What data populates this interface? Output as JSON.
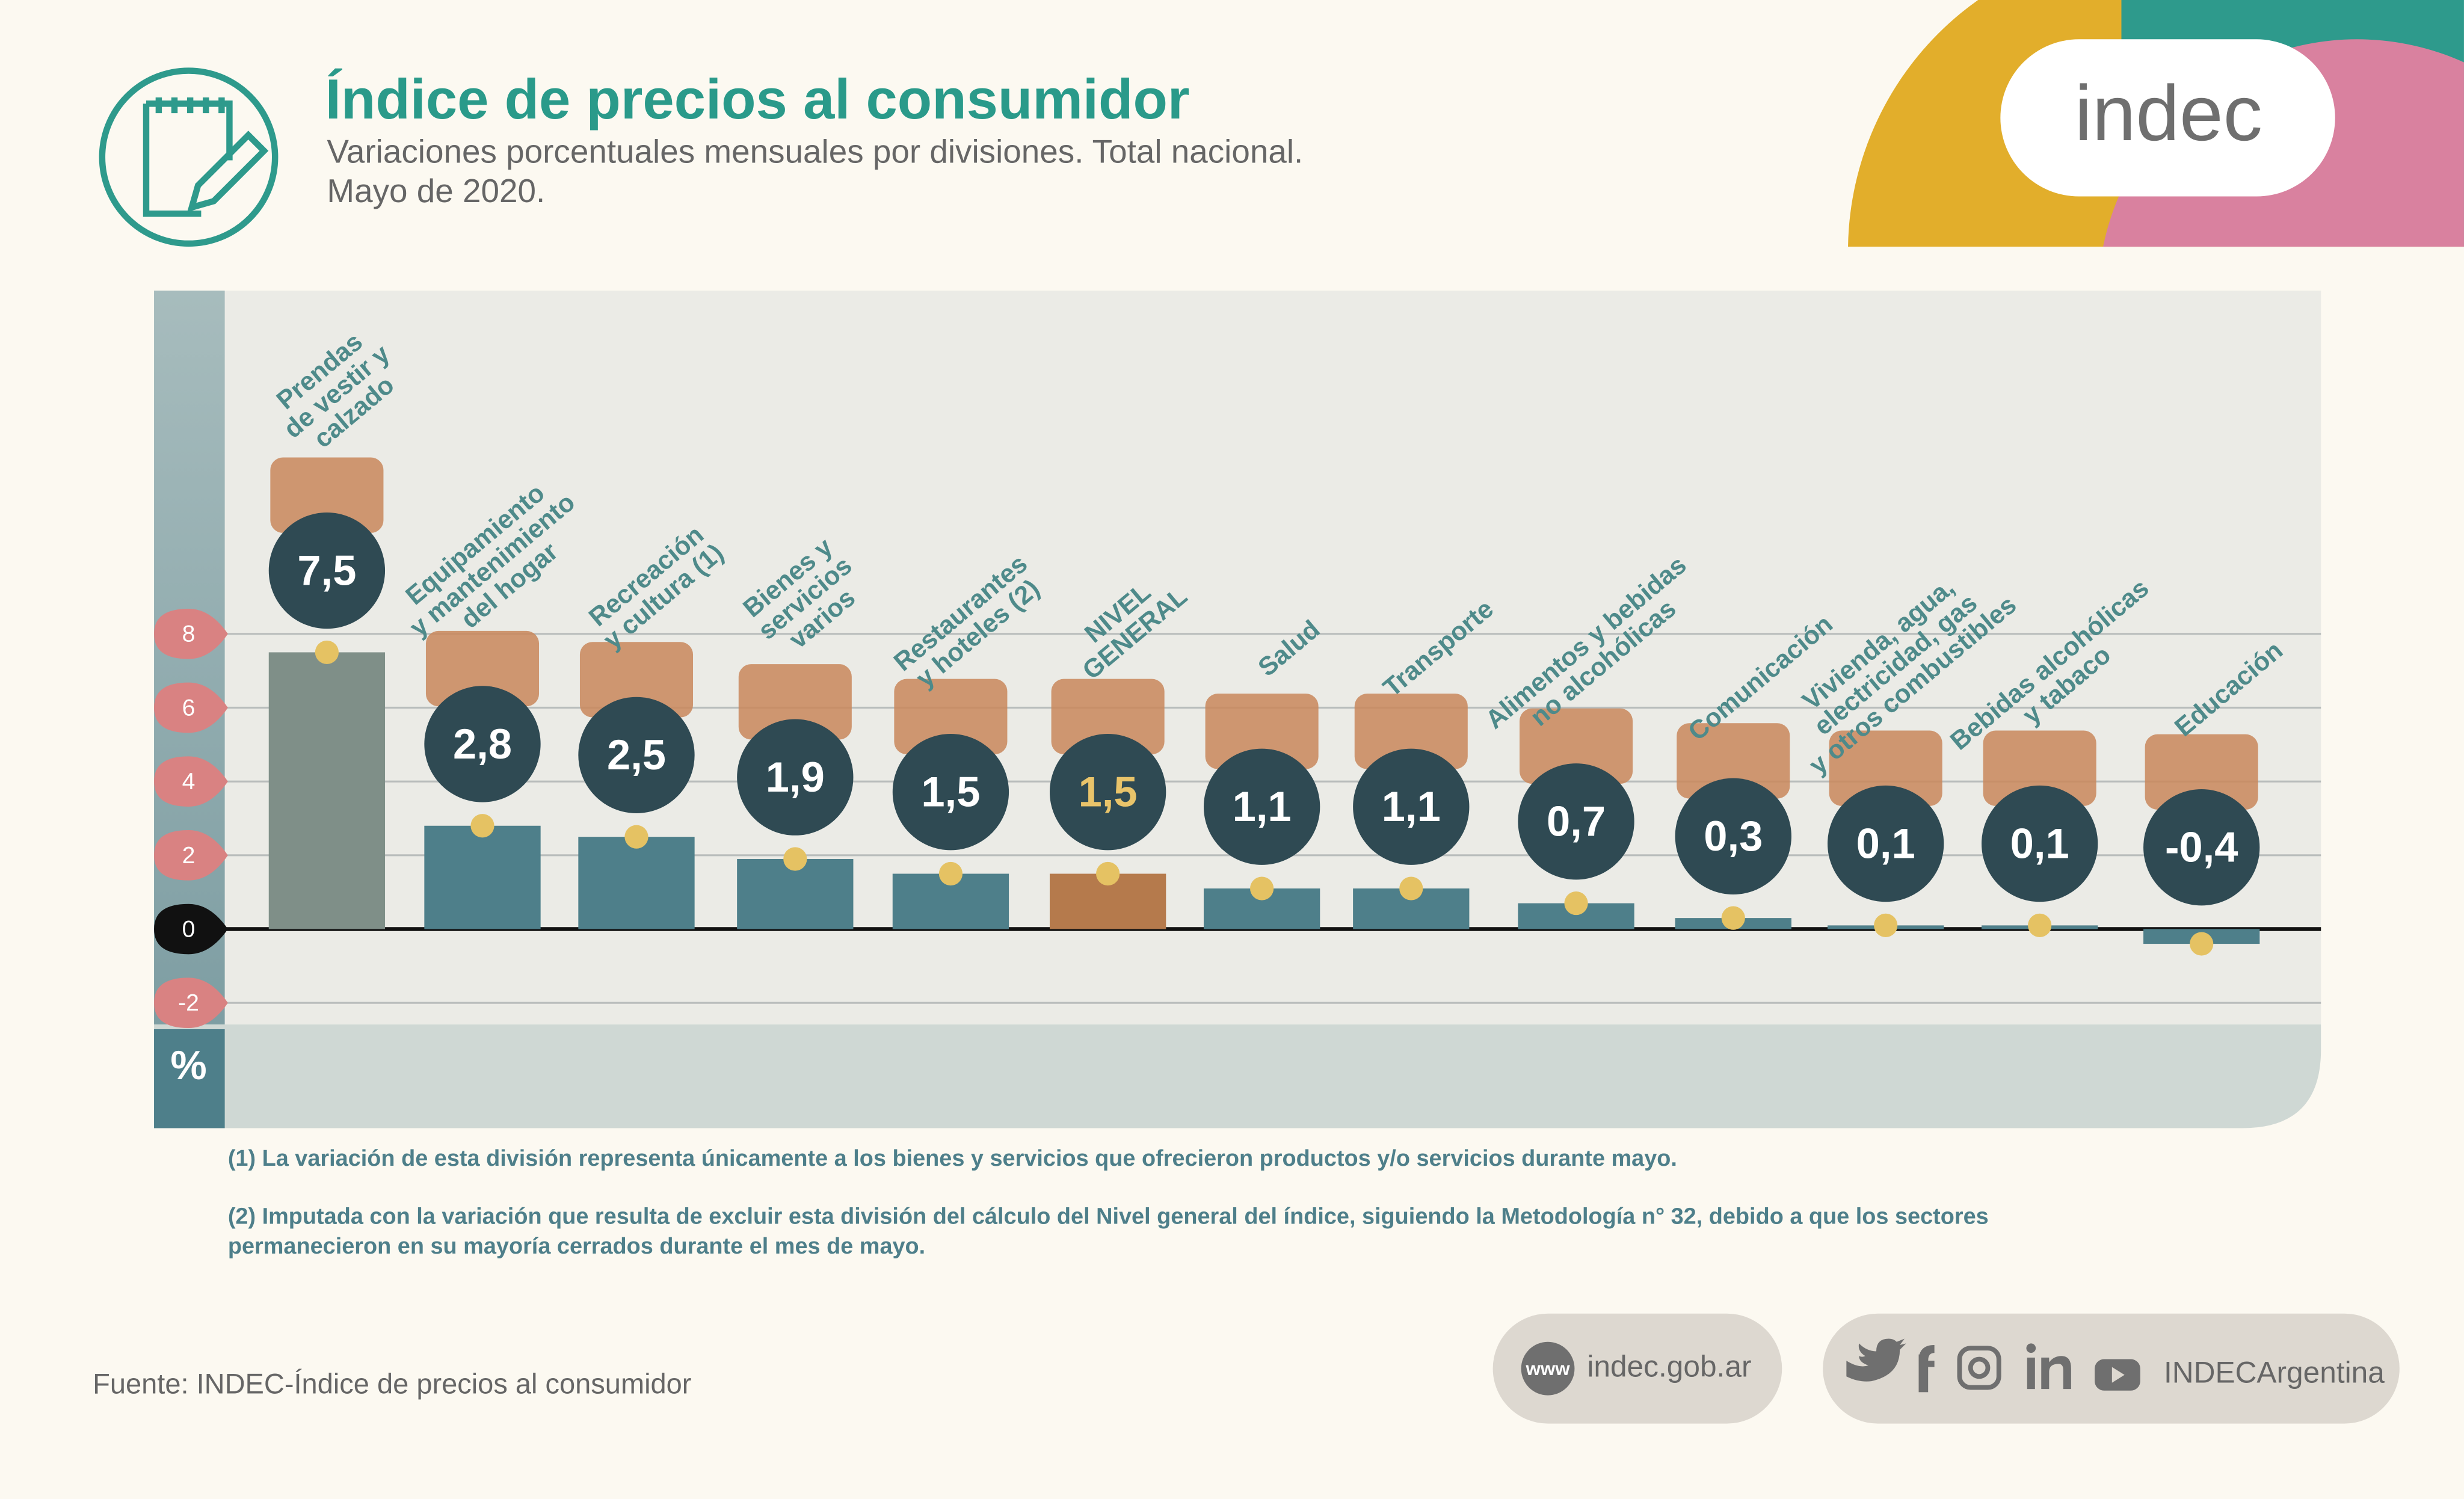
{
  "header": {
    "title": "Índice de precios al consumidor",
    "subtitle": [
      "Variaciones porcentuales mensuales por divisiones. Total nacional.",
      "Mayo de 2020."
    ],
    "logo": "indec"
  },
  "chart_data": {
    "type": "bar",
    "axis_unit": "%",
    "categories": [
      "Prendas\nde vestir y\ncalzado",
      "Equipamiento\ny mantenimiento\ndel hogar",
      "Recreación\ny cultura (1)",
      "Bienes y\nservicios\nvarios",
      "Restaurantes\ny hoteles (2)",
      "NIVEL\nGENERAL",
      "Salud",
      "Transporte",
      "Alimentos y bebidas\nno alcohólicas",
      "Comunicación",
      "Vivienda, agua,\nelectricidad, gas\ny otros combustibles",
      "Bebidas alcohólicas\ny tabaco",
      "Educación"
    ],
    "values": [
      7.5,
      2.8,
      2.5,
      1.9,
      1.5,
      1.5,
      1.1,
      1.1,
      0.7,
      0.3,
      0.1,
      0.1,
      -0.4
    ],
    "value_labels": [
      "7,5",
      "2,8",
      "2,5",
      "1,9",
      "1,5",
      "1,5",
      "1,1",
      "1,1",
      "0,7",
      "0,3",
      "0,1",
      "0,1",
      "-0,4"
    ],
    "colors": [
      "#7f8f88",
      "#4e7f8a",
      "#4e7f8a",
      "#4e7f8a",
      "#4e7f8a",
      "#b57a4c",
      "#4e7f8a",
      "#4e7f8a",
      "#4e7f8a",
      "#4e7f8a",
      "#4e7f8a",
      "#4e7f8a",
      "#4e7f8a"
    ],
    "value_label_colors": [
      "#ffffff",
      "#ffffff",
      "#ffffff",
      "#ffffff",
      "#ffffff",
      "#e9c46a",
      "#ffffff",
      "#ffffff",
      "#ffffff",
      "#ffffff",
      "#ffffff",
      "#ffffff",
      "#ffffff"
    ],
    "ylim": [
      -2.5,
      17.3
    ],
    "yticks": [
      -2,
      0,
      2,
      4,
      6,
      8
    ],
    "grid": true
  },
  "notes": [
    "(1) La variación de esta división representa únicamente a los bienes y servicios que ofrecieron productos y/o servicios durante mayo.",
    "(2) Imputada con la variación que resulta de excluir esta división del cálculo del Nivel general del índice, siguiendo la Metodología n° 32, debido a que los sectores\npermanecieron en su mayoría cerrados durante el mes de mayo."
  ],
  "footer": {
    "source": "Fuente: INDEC-Índice de precios al consumidor",
    "www": "www",
    "website": "indec.gob.ar",
    "social": "INDECArgentina"
  }
}
